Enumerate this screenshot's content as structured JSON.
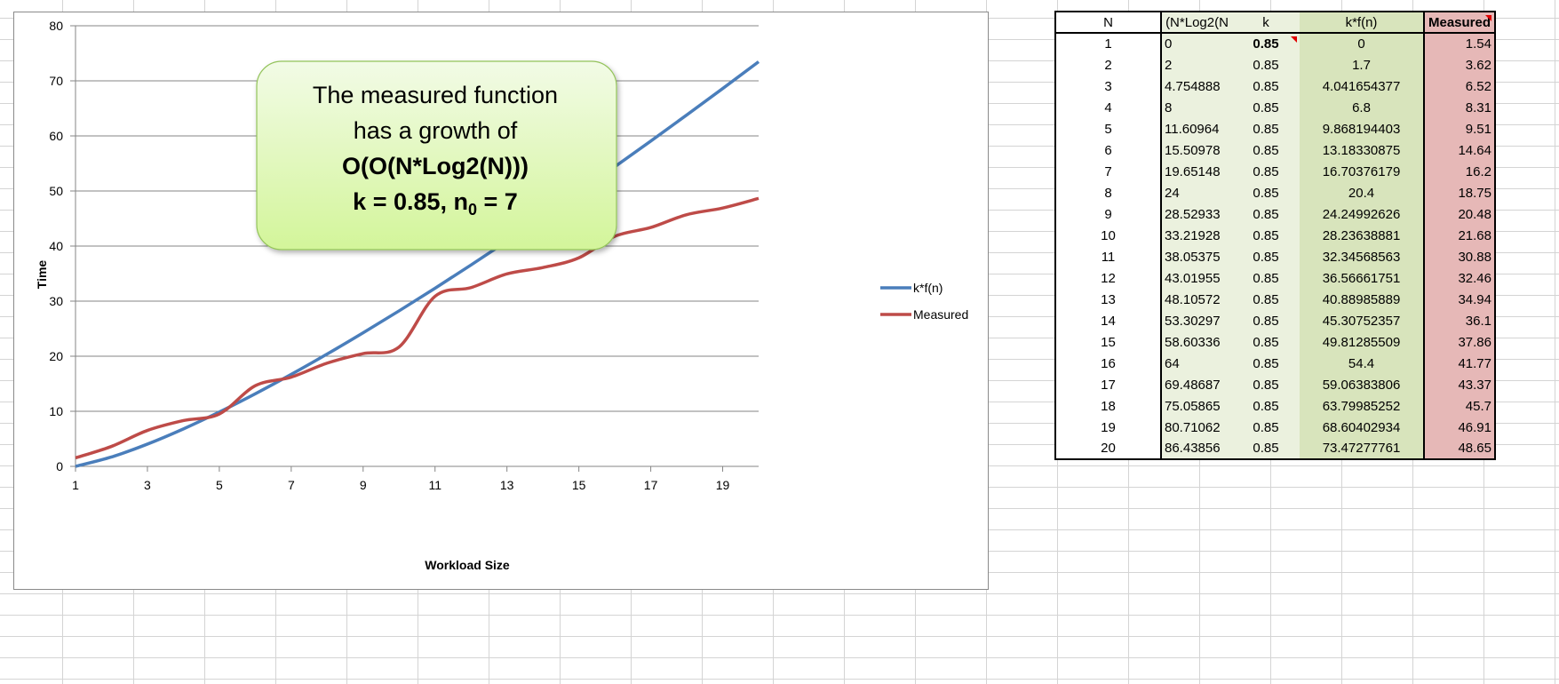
{
  "chart_data": {
    "type": "line",
    "title": "",
    "xlabel": "Workload Size",
    "ylabel": "Time",
    "xlim": [
      1,
      20
    ],
    "ylim": [
      0,
      80
    ],
    "xticks": [
      1,
      3,
      5,
      7,
      9,
      11,
      13,
      15,
      17,
      19
    ],
    "yticks": [
      0,
      10,
      20,
      30,
      40,
      50,
      60,
      70,
      80
    ],
    "grid": "horizontal",
    "legend": "right",
    "x": [
      1,
      2,
      3,
      4,
      5,
      6,
      7,
      8,
      9,
      10,
      11,
      12,
      13,
      14,
      15,
      16,
      17,
      18,
      19,
      20
    ],
    "series": [
      {
        "name": "k*f(n)",
        "color": "#4a7ebb",
        "values": [
          0,
          1.7,
          4.041654377,
          6.8,
          9.868194403,
          13.18330875,
          16.70376179,
          20.4,
          24.24992626,
          28.23638881,
          32.34568563,
          36.56661751,
          40.88985889,
          45.30752357,
          49.81285509,
          54.4,
          59.06383806,
          63.79985252,
          68.60402934,
          73.47277761
        ]
      },
      {
        "name": "Measured",
        "color": "#be4b48",
        "values": [
          1.54,
          3.62,
          6.52,
          8.31,
          9.51,
          14.64,
          16.2,
          18.75,
          20.48,
          21.68,
          30.88,
          32.46,
          34.94,
          36.1,
          37.86,
          41.77,
          43.37,
          45.7,
          46.91,
          48.65
        ]
      }
    ],
    "annotation": {
      "line1": "The measured function",
      "line2": "has a growth of",
      "line3": "O(O(N*Log2(N)))",
      "line4_main": "k = 0.85, n",
      "line4_sub": "0",
      "line4_tail": " = 7",
      "fill_top": "#f2fbe6",
      "fill_bottom": "#d3f59a",
      "border": "#93c35a"
    }
  },
  "table": {
    "headers": [
      "N",
      "(N*Log2(N",
      "k",
      "k*f(n)",
      "Measured"
    ],
    "rows": [
      [
        "1",
        "0",
        "0.85",
        "0",
        "1.54"
      ],
      [
        "2",
        "2",
        "0.85",
        "1.7",
        "3.62"
      ],
      [
        "3",
        "4.754888",
        "0.85",
        "4.041654377",
        "6.52"
      ],
      [
        "4",
        "8",
        "0.85",
        "6.8",
        "8.31"
      ],
      [
        "5",
        "11.60964",
        "0.85",
        "9.868194403",
        "9.51"
      ],
      [
        "6",
        "15.50978",
        "0.85",
        "13.18330875",
        "14.64"
      ],
      [
        "7",
        "19.65148",
        "0.85",
        "16.70376179",
        "16.2"
      ],
      [
        "8",
        "24",
        "0.85",
        "20.4",
        "18.75"
      ],
      [
        "9",
        "28.52933",
        "0.85",
        "24.24992626",
        "20.48"
      ],
      [
        "10",
        "33.21928",
        "0.85",
        "28.23638881",
        "21.68"
      ],
      [
        "11",
        "38.05375",
        "0.85",
        "32.34568563",
        "30.88"
      ],
      [
        "12",
        "43.01955",
        "0.85",
        "36.56661751",
        "32.46"
      ],
      [
        "13",
        "48.10572",
        "0.85",
        "40.88985889",
        "34.94"
      ],
      [
        "14",
        "53.30297",
        "0.85",
        "45.30752357",
        "36.1"
      ],
      [
        "15",
        "58.60336",
        "0.85",
        "49.81285509",
        "37.86"
      ],
      [
        "16",
        "64",
        "0.85",
        "54.4",
        "41.77"
      ],
      [
        "17",
        "69.48687",
        "0.85",
        "59.06383806",
        "43.37"
      ],
      [
        "18",
        "75.05865",
        "0.85",
        "63.79985252",
        "45.7"
      ],
      [
        "19",
        "80.71062",
        "0.85",
        "68.60402934",
        "46.91"
      ],
      [
        "20",
        "86.43856",
        "0.85",
        "73.47277761",
        "48.65"
      ]
    ]
  }
}
